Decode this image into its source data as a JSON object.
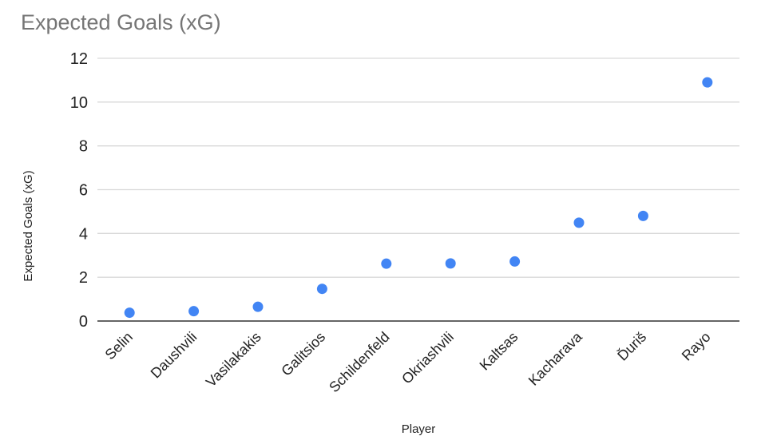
{
  "chart_data": {
    "type": "scatter",
    "title": "Expected Goals (xG)",
    "xlabel": "Player",
    "ylabel": "Expected Goals (xG)",
    "categories": [
      "Selin",
      "Daushvili",
      "Vasilakakis",
      "Galitsios",
      "Schildenfeld",
      "Okriashvili",
      "Kaltsas",
      "Kacharava",
      "Ďuriš",
      "Rayo"
    ],
    "series": [
      {
        "values": [
          0.38,
          0.45,
          0.65,
          1.47,
          2.62,
          2.63,
          2.72,
          4.49,
          4.8,
          10.9
        ],
        "color": "#4285f4"
      }
    ],
    "ylim": [
      0,
      12
    ],
    "yticks": [
      "0",
      "2",
      "4",
      "6",
      "8",
      "10",
      "12"
    ],
    "grid": true,
    "legend": "none"
  }
}
